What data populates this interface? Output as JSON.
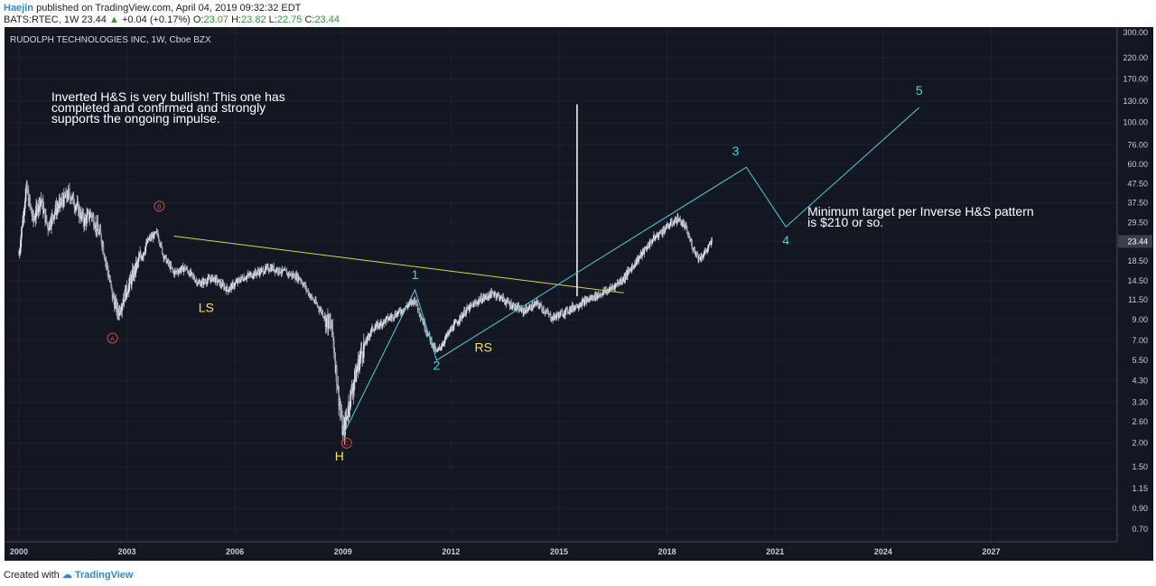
{
  "header": {
    "author": "Haejin",
    "published": "published on TradingView.com, April 04, 2019 09:32:32 EDT",
    "symbol": "BATS:RTEC, 1W",
    "last": "23.44",
    "change_arrow": "▲",
    "change": "+0.04 (+0.17%)",
    "o_label": "O:",
    "o": "23.07",
    "h_label": "H:",
    "h": "23.82",
    "l_label": "L:",
    "l": "22.75",
    "c_label": "C:",
    "c": "23.44"
  },
  "footer": {
    "created_with": "Created with",
    "brand": "TradingView"
  },
  "colors": {
    "background": "#131722",
    "candle": "#c8ccd6",
    "trendline": "#d6d64a",
    "wave": "#4dd0e1",
    "abc": "#e0403c",
    "hs_label": "#f5e04a",
    "vertical": "#ffffff"
  },
  "chart_data": {
    "type": "candlestick",
    "title": "RUDOLPH TECHNOLOGIES INC, 1W, Cboe BZX",
    "y_scale": "log",
    "ylim": [
      0.6,
      300
    ],
    "y_ticks": [
      "300.00",
      "220.00",
      "170.00",
      "130.00",
      "100.00",
      "76.00",
      "60.00",
      "47.50",
      "37.50",
      "29.50",
      "23.44",
      "18.50",
      "14.50",
      "11.50",
      "9.00",
      "7.00",
      "5.50",
      "4.30",
      "3.30",
      "2.60",
      "2.00",
      "1.50",
      "1.15",
      "0.90",
      "0.70"
    ],
    "y_tick_values": [
      300,
      220,
      170,
      130,
      100,
      76,
      60,
      47.5,
      37.5,
      29.5,
      23.44,
      18.5,
      14.5,
      11.5,
      9,
      7,
      5.5,
      4.3,
      3.3,
      2.6,
      2,
      1.5,
      1.15,
      0.9,
      0.7
    ],
    "current_price": "23.44",
    "xlim": [
      1999.6,
      2030.5
    ],
    "x_ticks": [
      "2000",
      "2003",
      "2006",
      "2009",
      "2012",
      "2015",
      "2018",
      "2021",
      "2024",
      "2027"
    ],
    "x_tick_values": [
      2000,
      2003,
      2006,
      2009,
      2012,
      2015,
      2018,
      2021,
      2024,
      2027
    ],
    "price_path": [
      [
        2000.0,
        20
      ],
      [
        2000.2,
        45
      ],
      [
        2000.4,
        30
      ],
      [
        2000.6,
        40
      ],
      [
        2000.8,
        28
      ],
      [
        2001.0,
        34
      ],
      [
        2001.2,
        38
      ],
      [
        2001.4,
        42
      ],
      [
        2001.6,
        36
      ],
      [
        2001.8,
        30
      ],
      [
        2002.0,
        33
      ],
      [
        2002.3,
        24
      ],
      [
        2002.6,
        12
      ],
      [
        2002.75,
        9.8
      ],
      [
        2003.0,
        13
      ],
      [
        2003.3,
        18
      ],
      [
        2003.6,
        24
      ],
      [
        2003.85,
        26
      ],
      [
        2004.0,
        20
      ],
      [
        2004.3,
        16
      ],
      [
        2004.6,
        17
      ],
      [
        2005.0,
        14
      ],
      [
        2005.4,
        15
      ],
      [
        2005.8,
        13
      ],
      [
        2006.2,
        15
      ],
      [
        2006.6,
        16
      ],
      [
        2007.0,
        17
      ],
      [
        2007.4,
        16
      ],
      [
        2007.8,
        15
      ],
      [
        2008.1,
        12
      ],
      [
        2008.4,
        10
      ],
      [
        2008.7,
        8
      ],
      [
        2008.85,
        4
      ],
      [
        2009.0,
        2.2
      ],
      [
        2009.2,
        3.5
      ],
      [
        2009.5,
        6
      ],
      [
        2009.8,
        8
      ],
      [
        2010.2,
        9
      ],
      [
        2010.6,
        10
      ],
      [
        2011.0,
        11.5
      ],
      [
        2011.3,
        8
      ],
      [
        2011.6,
        6
      ],
      [
        2012.0,
        8
      ],
      [
        2012.4,
        10
      ],
      [
        2012.8,
        11.5
      ],
      [
        2013.2,
        12.5
      ],
      [
        2013.6,
        11
      ],
      [
        2014.0,
        10
      ],
      [
        2014.4,
        11
      ],
      [
        2014.8,
        9.2
      ],
      [
        2015.2,
        10
      ],
      [
        2015.6,
        11
      ],
      [
        2016.0,
        12
      ],
      [
        2016.4,
        13
      ],
      [
        2016.8,
        15
      ],
      [
        2017.2,
        19
      ],
      [
        2017.6,
        24
      ],
      [
        2018.0,
        28
      ],
      [
        2018.3,
        31
      ],
      [
        2018.5,
        28
      ],
      [
        2018.7,
        22
      ],
      [
        2018.9,
        19
      ],
      [
        2019.1,
        21
      ],
      [
        2019.25,
        23.44
      ]
    ],
    "trendline": [
      [
        2004.3,
        25
      ],
      [
        2016.8,
        12.5
      ]
    ],
    "vertical_line": {
      "x": 2015.5,
      "y1": 12,
      "y2": 125
    },
    "wave_path": [
      [
        2009.0,
        2.2
      ],
      [
        2011.0,
        13
      ],
      [
        2011.6,
        5.5
      ],
      [
        2020.2,
        58
      ],
      [
        2021.3,
        28
      ],
      [
        2025.0,
        120
      ]
    ],
    "wave_labels": [
      {
        "text": "1",
        "x": 2011.0,
        "y": 14.8
      },
      {
        "text": "2",
        "x": 2011.6,
        "y": 4.9
      },
      {
        "text": "3",
        "x": 2019.9,
        "y": 67
      },
      {
        "text": "4",
        "x": 2021.3,
        "y": 22.5
      },
      {
        "text": "5",
        "x": 2025.0,
        "y": 140
      }
    ],
    "abc_labels": [
      {
        "text": "A",
        "x": 2002.6,
        "y": 7.2
      },
      {
        "text": "B",
        "x": 2003.9,
        "y": 36
      },
      {
        "text": "C",
        "x": 2009.1,
        "y": 2.0
      }
    ],
    "hs_labels": [
      {
        "text": "LS",
        "x": 2005.2,
        "y": 9.9
      },
      {
        "text": "H",
        "x": 2008.9,
        "y": 1.62
      },
      {
        "text": "RS",
        "x": 2012.9,
        "y": 6.1
      }
    ],
    "annotations": [
      {
        "lines": [
          "Inverted H&S is very bullish! This one has",
          "completed and confirmed and strongly",
          "supports the ongoing impulse."
        ],
        "x": 2000.9,
        "y": 130
      },
      {
        "lines": [
          "Minimum target per Inverse H&S pattern",
          "is $210 or so."
        ],
        "x": 2021.9,
        "y": 32
      }
    ]
  }
}
